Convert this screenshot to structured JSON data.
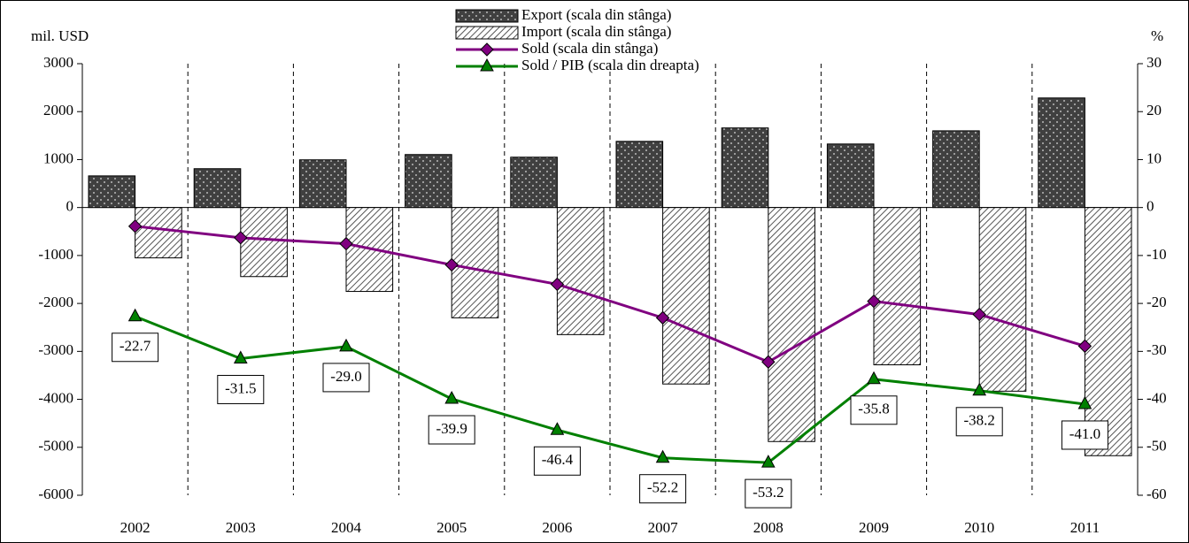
{
  "chart_data": {
    "type": "bar",
    "y_label": "mil. USD",
    "y2_label": "%",
    "categories": [
      "2002",
      "2003",
      "2004",
      "2005",
      "2006",
      "2007",
      "2008",
      "2009",
      "2010",
      "2011"
    ],
    "series": [
      {
        "name": "Export (scala din stânga)",
        "type": "bar",
        "color": "#404040",
        "values": [
          660,
          810,
          995,
          1105,
          1050,
          1380,
          1660,
          1325,
          1600,
          2285
        ]
      },
      {
        "name": "Import (scala din stânga)",
        "type": "bar",
        "color": "#d9d9d9",
        "values": [
          -1050,
          -1440,
          -1750,
          -2300,
          -2650,
          -3680,
          -4880,
          -3280,
          -3830,
          -5175
        ]
      },
      {
        "name": "Sold (scala din stânga)",
        "type": "line",
        "color": "#800080",
        "values": [
          -390,
          -630,
          -755,
          -1195,
          -1600,
          -2300,
          -3220,
          -1955,
          -2230,
          -2890
        ]
      },
      {
        "name": "Sold / PIB (scala din dreapta)",
        "type": "line",
        "axis": "y2",
        "color": "#008000",
        "values": [
          -22.7,
          -31.5,
          -29.0,
          -39.9,
          -46.4,
          -52.2,
          -53.2,
          -35.8,
          -38.2,
          -41.0
        ],
        "value_labels": [
          "-22.7",
          "-31.5",
          "-29.0",
          "-39.9",
          "-46.4",
          "-52.2",
          "-53.2",
          "-35.8",
          "-38.2",
          "-41.0"
        ]
      }
    ],
    "ylim": [
      -6000,
      3000
    ],
    "yticks": [
      3000,
      2000,
      1000,
      0,
      -1000,
      -2000,
      -3000,
      -4000,
      -5000,
      -6000
    ],
    "y2lim": [
      -60,
      30
    ],
    "y2ticks": [
      30,
      20,
      10,
      0,
      -10,
      -20,
      -30,
      -40,
      -50,
      -60
    ]
  }
}
